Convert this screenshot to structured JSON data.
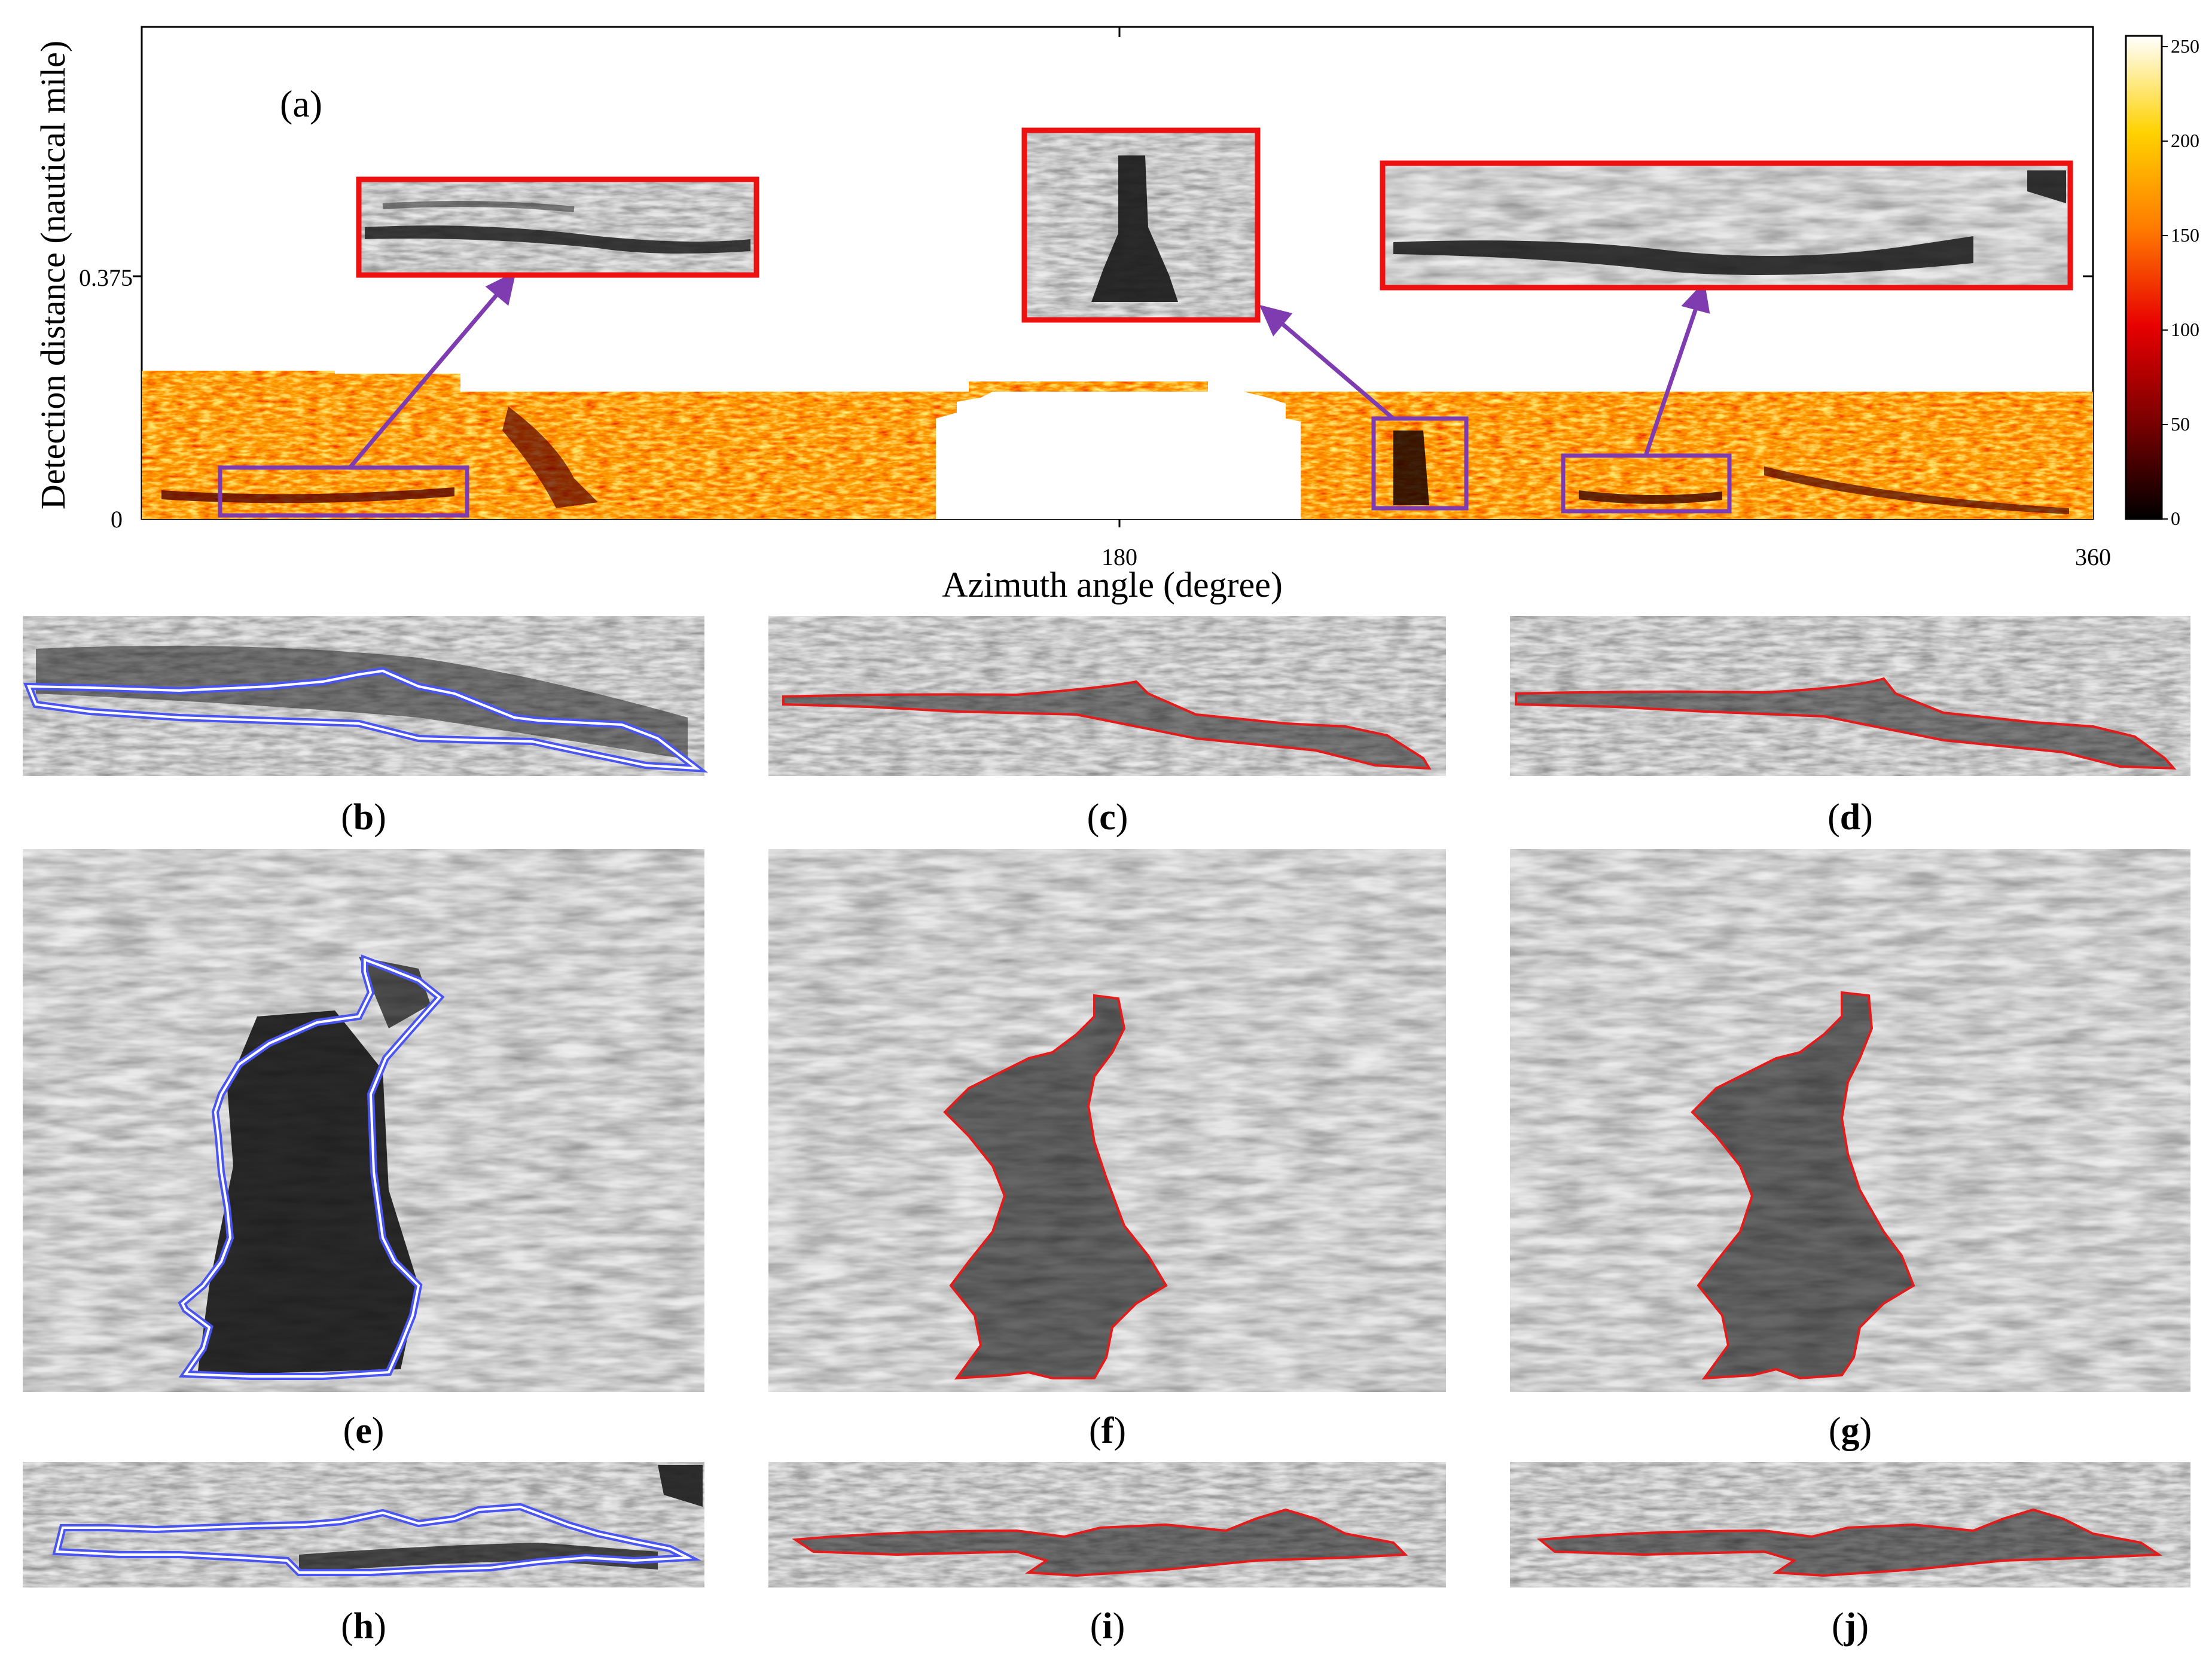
{
  "figure": {
    "panel_a": {
      "label": "(a)",
      "ylabel": "Detection distance (nautical mile)",
      "xlabel": "Azimuth angle (degree)",
      "x_ticks": [
        "180",
        "360"
      ],
      "y_ticks": [
        "0",
        "0.375"
      ],
      "colorbar_ticks": [
        "0",
        "50",
        "100",
        "150",
        "200",
        "250"
      ],
      "colormap": [
        "#000000",
        "#7a0000",
        "#e80000",
        "#ff7a00",
        "#ffd200",
        "#ffffff"
      ],
      "annotation_box_color": "#7e3cb0",
      "inset_border_color": "#ee1111"
    },
    "subpanels": [
      {
        "letter": "b"
      },
      {
        "letter": "c"
      },
      {
        "letter": "d"
      },
      {
        "letter": "e"
      },
      {
        "letter": "f"
      },
      {
        "letter": "g"
      },
      {
        "letter": "h"
      },
      {
        "letter": "i"
      },
      {
        "letter": "j"
      }
    ],
    "manual_contour_color": "#4a55f0",
    "auto_contour_color": "#e31b1b"
  }
}
